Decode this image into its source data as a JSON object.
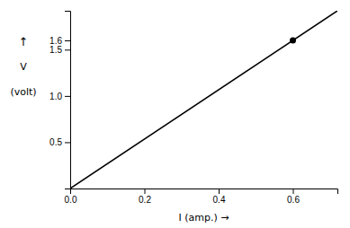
{
  "chart_data": {
    "type": "line",
    "xlabel": "I (amp.) →",
    "ylabel": [
      "↑",
      "V",
      "(volt)"
    ],
    "series": [
      {
        "type": "line",
        "color": "#000000",
        "x": [
          0,
          0.72
        ],
        "values": [
          0,
          1.92
        ]
      },
      {
        "type": "scatter",
        "color": "#000000",
        "x": [
          0.6
        ],
        "values": [
          1.6
        ]
      }
    ],
    "xlim": [
      0,
      0.72
    ],
    "ylim": [
      0,
      1.92
    ],
    "xticks": [
      {
        "value": 0,
        "label": "0.0"
      },
      0.2,
      0.4,
      0.6
    ],
    "yticks": [
      0.5,
      {
        "value": 1.0,
        "label": "1.0"
      },
      1.5,
      1.6
    ],
    "grid": false
  }
}
